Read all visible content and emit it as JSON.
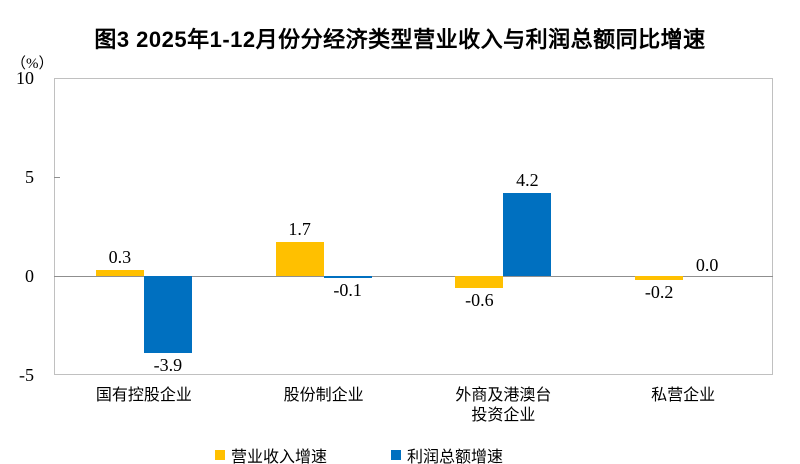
{
  "chart_data": {
    "type": "bar",
    "title": "图3 2025年1-12月份分经济类型营业收入与利润总额同比增速",
    "unit_label": "（%）",
    "categories": [
      "国有控股企业",
      "股份制企业",
      "外商及港澳台\n投资企业",
      "私营企业"
    ],
    "series": [
      {
        "name": "营业收入增速",
        "color": "#FFC000",
        "values": [
          0.3,
          1.7,
          -0.6,
          -0.2
        ]
      },
      {
        "name": "利润总额增速",
        "color": "#0070C0",
        "values": [
          -3.9,
          -0.1,
          4.2,
          0.0
        ]
      }
    ],
    "ylim": [
      -5,
      10
    ],
    "yticks": [
      10,
      5,
      0,
      -5
    ],
    "grid": false,
    "zero_line": true,
    "legend_position": "bottom",
    "value_labels": true,
    "value_label_decimals": 1
  },
  "colors": {
    "revenue_series": "#FFC000",
    "profit_series": "#0070C0",
    "plot_border": "#C0C0C0",
    "zero_line": "#8F8F8F",
    "text": "#000000"
  }
}
